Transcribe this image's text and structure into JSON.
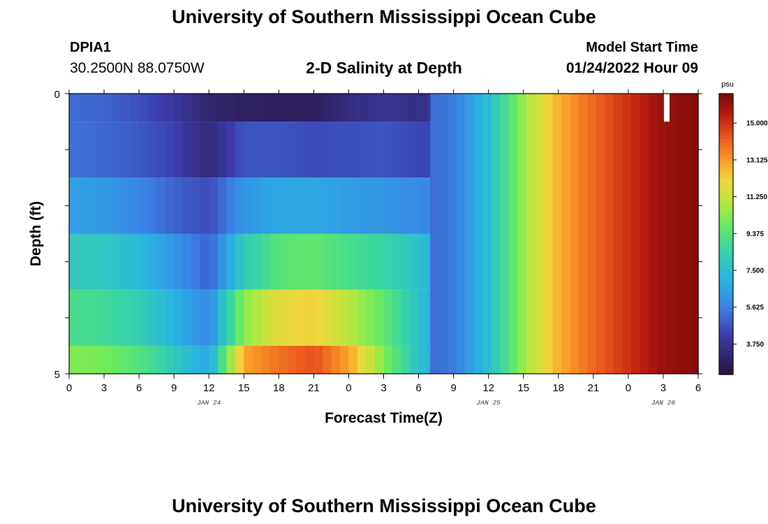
{
  "header": {
    "title": "University of Southern Mississippi Ocean Cube",
    "station_id": "DPIA1",
    "station_coords": "30.2500N  88.0750W",
    "plot_title": "2-D Salinity at Depth",
    "model_label": "Model Start Time",
    "model_time": "01/24/2022 Hour 09"
  },
  "footer": {
    "title": "University of Southern Mississippi Ocean Cube"
  },
  "chart_data": {
    "type": "heatmap",
    "title": "2-D Salinity at Depth",
    "xlabel": "Forecast Time(Z)",
    "ylabel": "Depth (ft)",
    "ylim": [
      0,
      5
    ],
    "y_ticks": [
      "0",
      "5"
    ],
    "x_tick_labels": [
      "0",
      "3",
      "6",
      "9",
      "12",
      "15",
      "18",
      "21",
      "0",
      "3",
      "6",
      "9",
      "12",
      "15",
      "18",
      "21",
      "0",
      "3",
      "6"
    ],
    "date_labels": [
      {
        "label": "JAN 24",
        "x_index": 4
      },
      {
        "label": "JAN 25",
        "x_index": 12
      },
      {
        "label": "JAN 26",
        "x_index": 17
      }
    ],
    "colorbar": {
      "unit": "psu",
      "min": 2.2,
      "max": 16.5,
      "tick_values": [
        3.75,
        5.625,
        7.5,
        9.375,
        11.25,
        13.125,
        15.0
      ],
      "tick_labels": [
        "3.750",
        "5.625",
        "7.500",
        "9.375",
        "11.250",
        "13.125",
        "15.000"
      ]
    },
    "x_hours": [
      0,
      3,
      6,
      9,
      12,
      15,
      18,
      21,
      24,
      27,
      30,
      33,
      36,
      39,
      42,
      45,
      48,
      51,
      54
    ],
    "layers": [
      {
        "depth_top": 0.0,
        "depth_bottom": 0.5,
        "hours_end": 31,
        "values": [
          5.2,
          5.0,
          4.6,
          4.0,
          3.1,
          2.9,
          2.8,
          2.8,
          3.4,
          3.8,
          3.5,
          4.3
        ]
      },
      {
        "depth_top": 0.5,
        "depth_bottom": 1.5,
        "hours_end": 31,
        "values": [
          5.3,
          5.1,
          4.8,
          4.3,
          3.3,
          4.7,
          4.7,
          4.5,
          4.6,
          4.7,
          4.4,
          4.4
        ]
      },
      {
        "depth_top": 1.5,
        "depth_bottom": 2.5,
        "hours_end": 31,
        "values": [
          6.5,
          6.3,
          5.8,
          5.0,
          4.5,
          6.2,
          6.7,
          6.7,
          6.4,
          6.2,
          5.9,
          5.9
        ]
      },
      {
        "depth_top": 2.5,
        "depth_bottom": 3.5,
        "hours_end": 33,
        "values": [
          8.0,
          7.8,
          7.3,
          6.2,
          5.0,
          8.0,
          9.4,
          9.6,
          9.0,
          8.5,
          7.6,
          6.0
        ]
      },
      {
        "depth_top": 3.5,
        "depth_bottom": 4.5,
        "hours_end": 33,
        "values": [
          9.0,
          8.8,
          8.2,
          7.0,
          5.8,
          10.3,
          11.8,
          12.2,
          11.0,
          9.6,
          7.6,
          6.0
        ]
      },
      {
        "depth_top": 4.5,
        "depth_bottom": 5.0,
        "hours_end": 33,
        "values": [
          10.2,
          10.0,
          9.3,
          8.0,
          6.6,
          13.0,
          13.8,
          14.4,
          13.0,
          10.2,
          7.6,
          6.0
        ]
      }
    ],
    "surface_series": {
      "x": [
        30,
        33,
        36,
        39,
        42,
        45,
        48,
        51,
        54
      ],
      "values": [
        5.0,
        5.5,
        7.5,
        10.5,
        12.8,
        14.0,
        15.0,
        16.0,
        16.3
      ]
    },
    "gap": {
      "x_hour": 51.3,
      "depth_top": 0.0,
      "depth_bottom": 0.5
    }
  }
}
